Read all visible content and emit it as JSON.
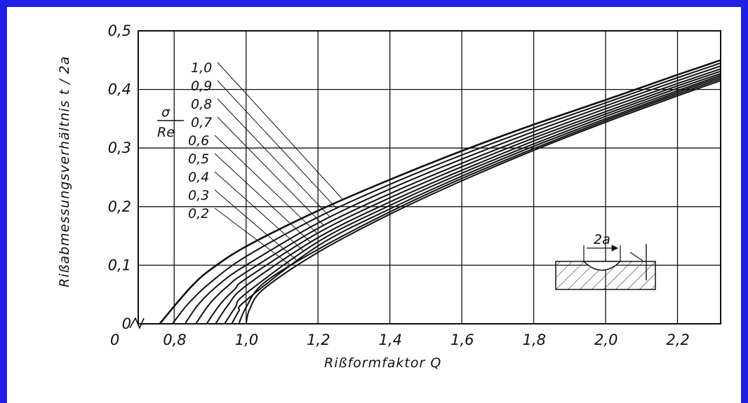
{
  "frame_color": "#1f1fe6",
  "chart_data": {
    "type": "line",
    "title": "",
    "xlabel": "Rißformfaktor Q",
    "ylabel": "Rißabmessungsverhältnis t / 2a",
    "xlim": [
      0.7,
      2.32
    ],
    "ylim": [
      0,
      0.5
    ],
    "grid": true,
    "x_ticks": [
      {
        "value": 0.8,
        "label": "0,8"
      },
      {
        "value": 1.0,
        "label": "1,0"
      },
      {
        "value": 1.2,
        "label": "1,2"
      },
      {
        "value": 1.4,
        "label": "1,4"
      },
      {
        "value": 1.6,
        "label": "1,6"
      },
      {
        "value": 1.8,
        "label": "1,8"
      },
      {
        "value": 2.0,
        "label": "2,0"
      },
      {
        "value": 2.2,
        "label": "2,2"
      }
    ],
    "x_origin_label": "0",
    "y_ticks": [
      {
        "value": 0,
        "label": "0"
      },
      {
        "value": 0.1,
        "label": "0,1"
      },
      {
        "value": 0.2,
        "label": "0,2"
      },
      {
        "value": 0.3,
        "label": "0,3"
      },
      {
        "value": 0.4,
        "label": "0,4"
      },
      {
        "value": 0.5,
        "label": "0,5"
      }
    ],
    "parameter_label": {
      "numerator": "σ",
      "denominator": "Re"
    },
    "series": [
      {
        "name": "1,0",
        "points": [
          [
            0.76,
            0.0
          ],
          [
            0.8,
            0.03
          ],
          [
            0.85,
            0.065
          ],
          [
            0.9,
            0.092
          ],
          [
            1.0,
            0.132
          ],
          [
            1.2,
            0.193
          ],
          [
            1.4,
            0.246
          ],
          [
            1.6,
            0.295
          ],
          [
            1.8,
            0.34
          ],
          [
            2.0,
            0.382
          ],
          [
            2.2,
            0.425
          ],
          [
            2.32,
            0.45
          ]
        ]
      },
      {
        "name": "0,9",
        "points": [
          [
            0.795,
            0.0
          ],
          [
            0.84,
            0.035
          ],
          [
            0.9,
            0.07
          ],
          [
            1.0,
            0.115
          ],
          [
            1.2,
            0.182
          ],
          [
            1.4,
            0.238
          ],
          [
            1.6,
            0.288
          ],
          [
            1.8,
            0.334
          ],
          [
            2.0,
            0.377
          ],
          [
            2.2,
            0.42
          ],
          [
            2.32,
            0.445
          ]
        ]
      },
      {
        "name": "0,8",
        "points": [
          [
            0.83,
            0.0
          ],
          [
            0.87,
            0.035
          ],
          [
            0.93,
            0.07
          ],
          [
            1.0,
            0.1
          ],
          [
            1.2,
            0.172
          ],
          [
            1.4,
            0.23
          ],
          [
            1.6,
            0.281
          ],
          [
            1.8,
            0.328
          ],
          [
            2.0,
            0.372
          ],
          [
            2.2,
            0.415
          ],
          [
            2.32,
            0.44
          ]
        ]
      },
      {
        "name": "0,7",
        "points": [
          [
            0.86,
            0.0
          ],
          [
            0.9,
            0.035
          ],
          [
            0.95,
            0.065
          ],
          [
            1.0,
            0.088
          ],
          [
            1.2,
            0.163
          ],
          [
            1.4,
            0.222
          ],
          [
            1.6,
            0.274
          ],
          [
            1.8,
            0.322
          ],
          [
            2.0,
            0.367
          ],
          [
            2.2,
            0.41
          ],
          [
            2.32,
            0.435
          ]
        ]
      },
      {
        "name": "0,6",
        "points": [
          [
            0.89,
            0.0
          ],
          [
            0.93,
            0.035
          ],
          [
            0.97,
            0.06
          ],
          [
            1.0,
            0.077
          ],
          [
            1.2,
            0.155
          ],
          [
            1.4,
            0.215
          ],
          [
            1.6,
            0.268
          ],
          [
            1.8,
            0.317
          ],
          [
            2.0,
            0.362
          ],
          [
            2.2,
            0.406
          ],
          [
            2.32,
            0.431
          ]
        ]
      },
      {
        "name": "0,5",
        "points": [
          [
            0.915,
            0.0
          ],
          [
            0.95,
            0.032
          ],
          [
            1.0,
            0.065
          ],
          [
            1.2,
            0.147
          ],
          [
            1.4,
            0.208
          ],
          [
            1.6,
            0.262
          ],
          [
            1.8,
            0.312
          ],
          [
            2.0,
            0.358
          ],
          [
            2.2,
            0.402
          ],
          [
            2.32,
            0.427
          ]
        ]
      },
      {
        "name": "0,4",
        "points": [
          [
            0.94,
            0.0
          ],
          [
            0.97,
            0.028
          ],
          [
            1.0,
            0.052
          ],
          [
            1.2,
            0.14
          ],
          [
            1.4,
            0.202
          ],
          [
            1.6,
            0.257
          ],
          [
            1.8,
            0.307
          ],
          [
            2.0,
            0.354
          ],
          [
            2.2,
            0.398
          ],
          [
            2.32,
            0.424
          ]
        ]
      },
      {
        "name": "0,3",
        "points": [
          [
            0.96,
            0.0
          ],
          [
            0.98,
            0.022
          ],
          [
            1.0,
            0.04
          ],
          [
            1.2,
            0.133
          ],
          [
            1.4,
            0.196
          ],
          [
            1.6,
            0.252
          ],
          [
            1.8,
            0.303
          ],
          [
            2.0,
            0.35
          ],
          [
            2.2,
            0.395
          ],
          [
            2.32,
            0.421
          ]
        ]
      },
      {
        "name": "0,2",
        "points": [
          [
            0.98,
            0.0
          ],
          [
            1.0,
            0.028
          ],
          [
            1.05,
            0.07
          ],
          [
            1.2,
            0.127
          ],
          [
            1.4,
            0.191
          ],
          [
            1.6,
            0.248
          ],
          [
            1.8,
            0.299
          ],
          [
            2.0,
            0.347
          ],
          [
            2.2,
            0.392
          ],
          [
            2.32,
            0.418
          ]
        ]
      },
      {
        "name": "",
        "points": [
          [
            1.0,
            0.0
          ],
          [
            1.01,
            0.025
          ],
          [
            1.05,
            0.06
          ],
          [
            1.2,
            0.122
          ],
          [
            1.4,
            0.187
          ],
          [
            1.6,
            0.244
          ],
          [
            1.8,
            0.296
          ],
          [
            2.0,
            0.344
          ],
          [
            2.2,
            0.389
          ],
          [
            2.32,
            0.415
          ]
        ]
      }
    ],
    "inset_label": "2a"
  }
}
